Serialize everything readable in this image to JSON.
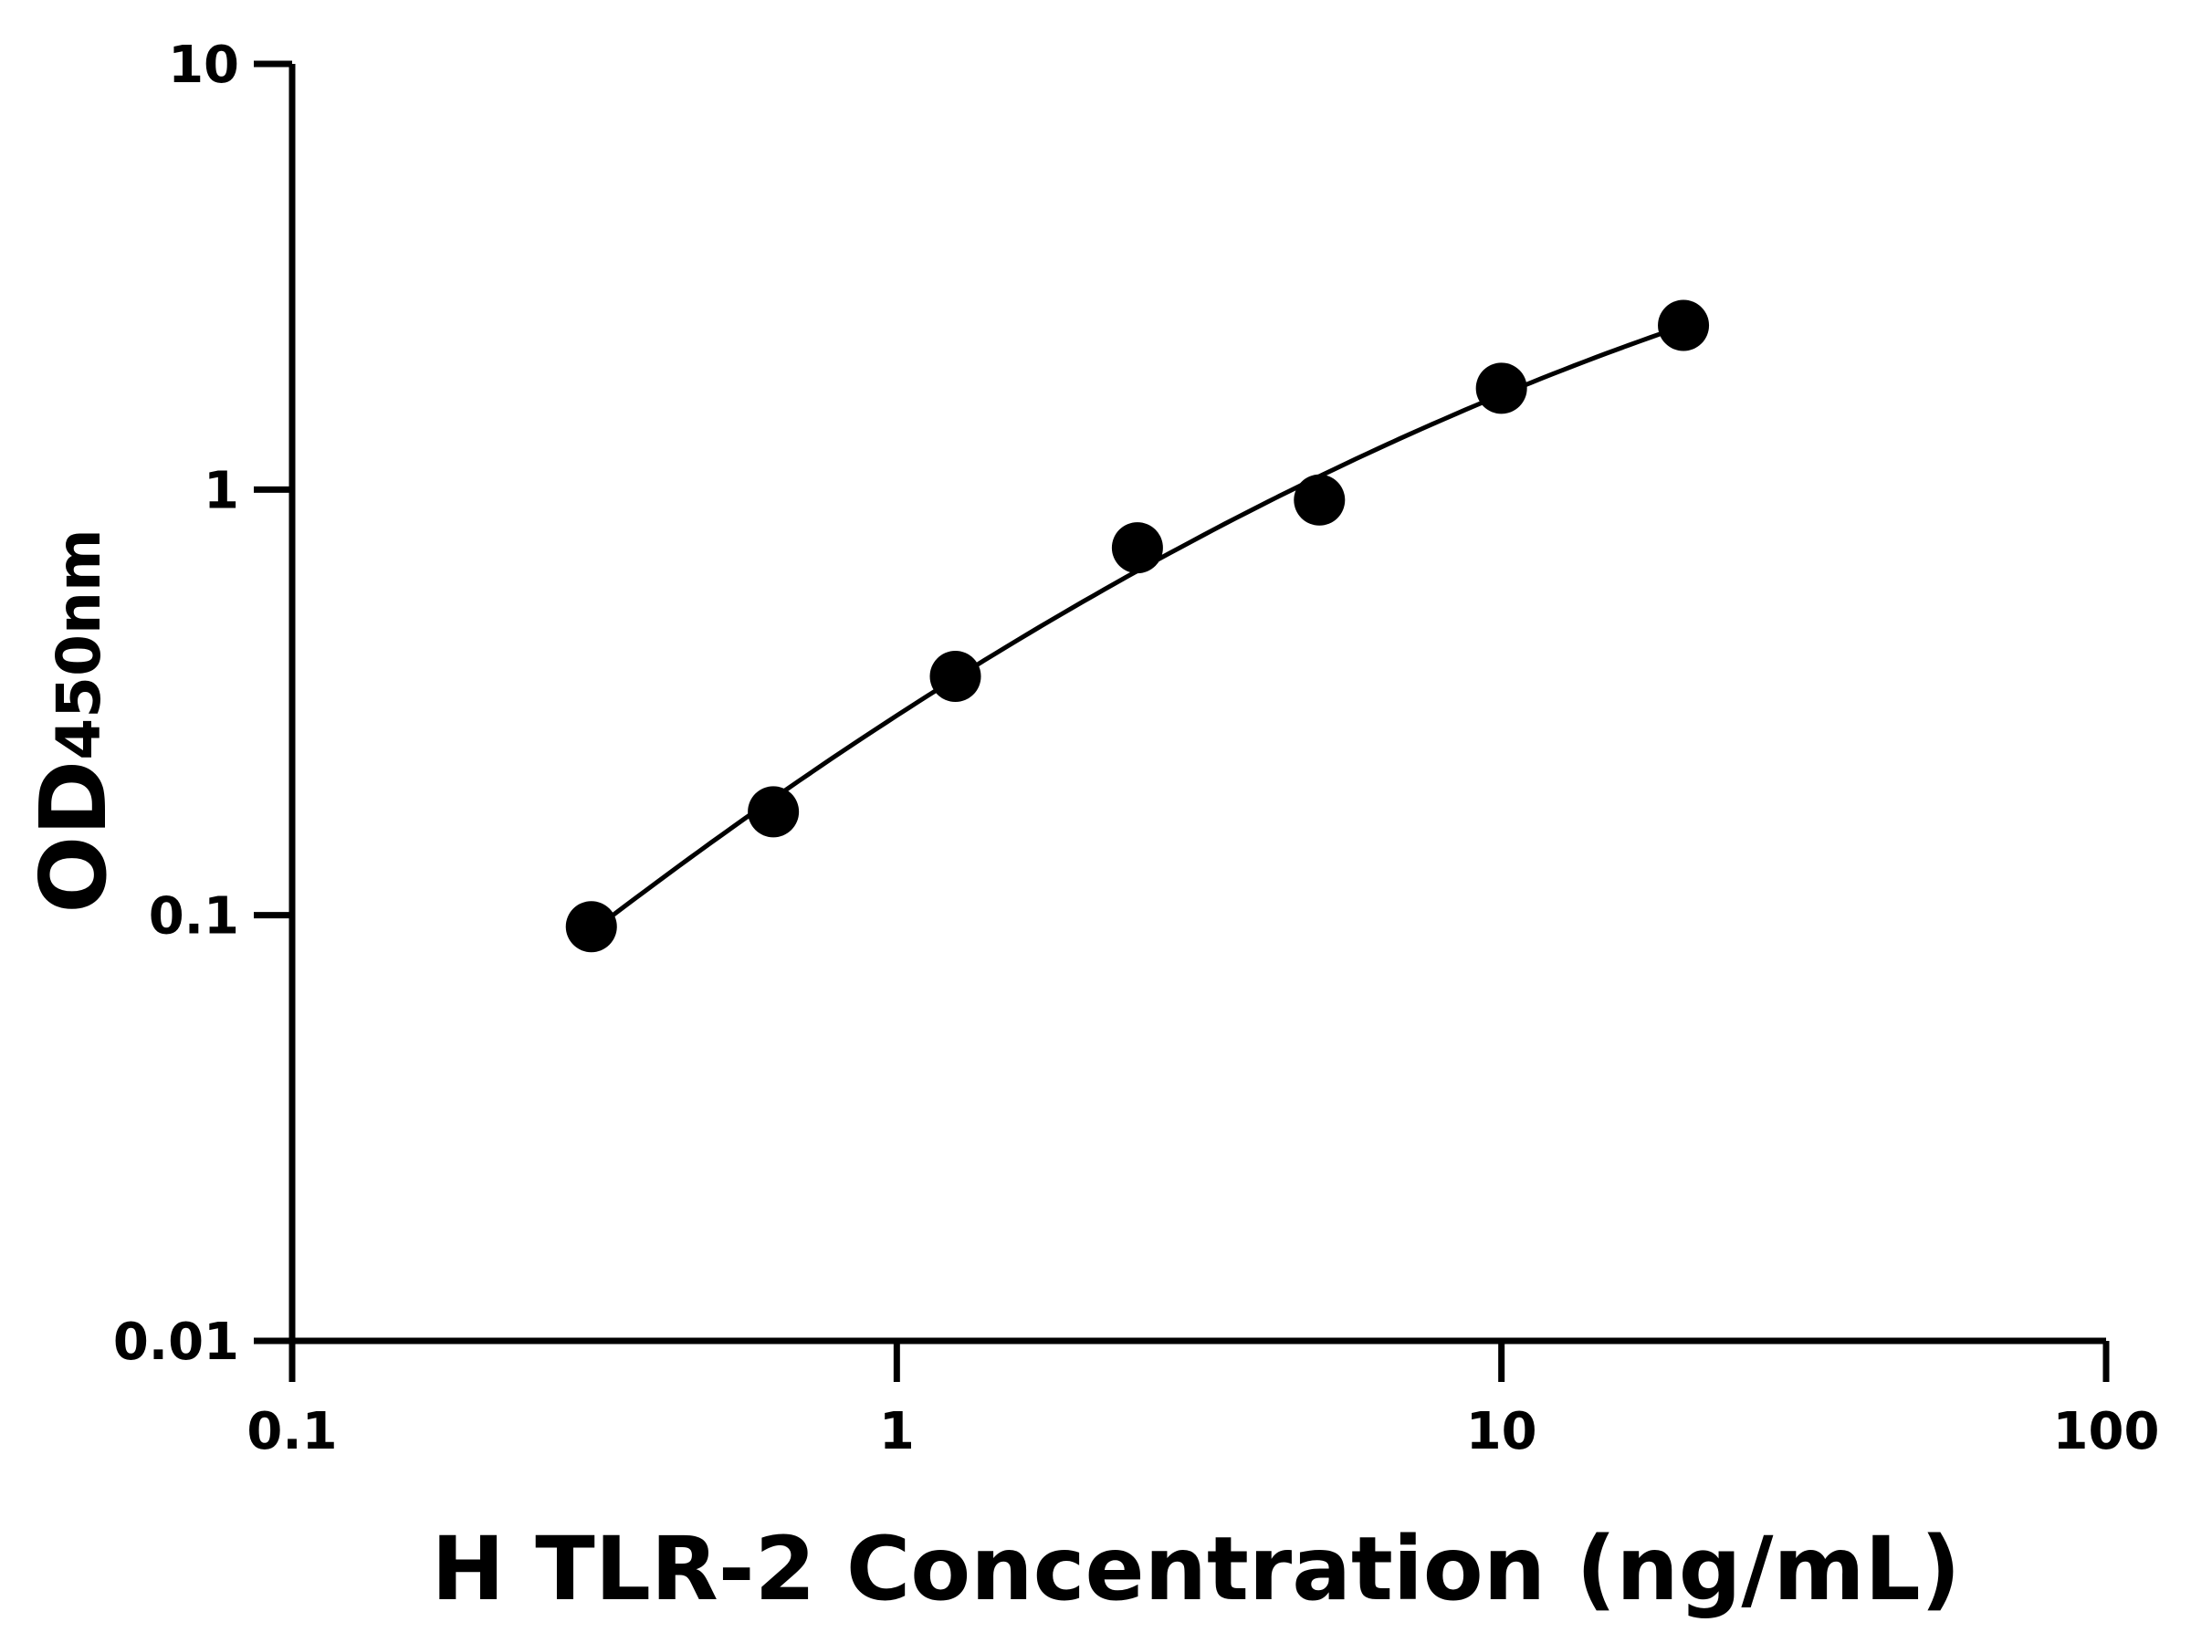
{
  "chart_data": {
    "type": "scatter",
    "title": "",
    "xlabel": "H TLR-2 Concentration (ng/mL)",
    "ylabel_main": "OD",
    "ylabel_sub": "450nm",
    "x_scale": "log",
    "y_scale": "log",
    "xlim": [
      0.1,
      100
    ],
    "ylim": [
      0.01,
      10
    ],
    "x_ticks": [
      0.1,
      1,
      10,
      100
    ],
    "x_tick_labels": [
      "0.1",
      "1",
      "10",
      "100"
    ],
    "y_ticks": [
      0.01,
      0.1,
      1,
      10
    ],
    "y_tick_labels": [
      "0.01",
      "0.1",
      "1",
      "10"
    ],
    "grid": false,
    "legend": "none",
    "fit_curve": true,
    "series": [
      {
        "x": [
          0.3125,
          0.625,
          1.25,
          2.5,
          5,
          10,
          20
        ],
        "y": [
          0.094,
          0.175,
          0.364,
          0.73,
          0.945,
          1.73,
          2.43
        ]
      }
    ],
    "colors": {
      "points": "#000000",
      "curve": "#000000",
      "axes": "#000000"
    }
  }
}
